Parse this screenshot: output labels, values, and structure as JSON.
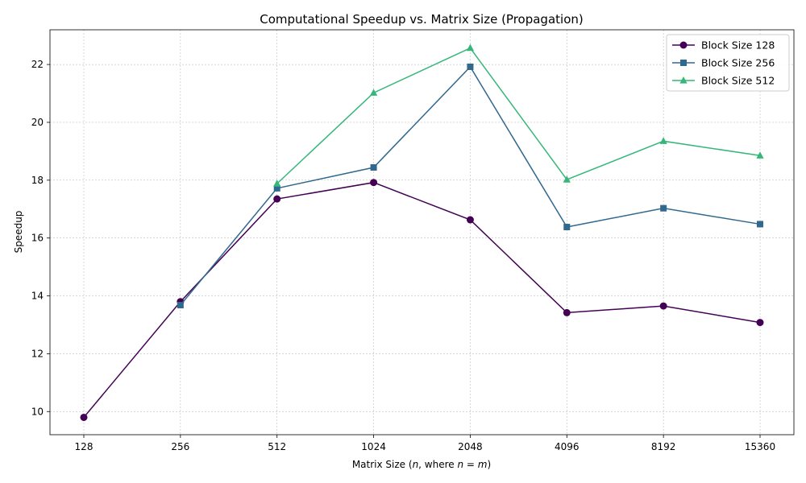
{
  "chart_data": {
    "type": "line",
    "title": "Computational Speedup vs. Matrix Size (Propagation)",
    "xlabel": "Matrix Size (n, where n = m)",
    "ylabel": "Speedup",
    "categories": [
      "128",
      "256",
      "512",
      "1024",
      "2048",
      "4096",
      "8192",
      "15360"
    ],
    "ylim": [
      9.2,
      23.2
    ],
    "yticks": [
      10,
      12,
      14,
      16,
      18,
      20,
      22
    ],
    "grid": true,
    "legend_position": "top-right",
    "series": [
      {
        "name": "Block Size 128",
        "color": "#440154",
        "marker": "circle",
        "values": [
          9.8,
          13.8,
          17.35,
          17.92,
          16.63,
          13.42,
          13.65,
          13.08
        ]
      },
      {
        "name": "Block Size 256",
        "color": "#31688e",
        "marker": "square",
        "values": [
          null,
          13.68,
          17.72,
          18.44,
          21.92,
          16.38,
          17.03,
          16.48
        ]
      },
      {
        "name": "Block Size 512",
        "color": "#35b779",
        "marker": "triangle",
        "values": [
          null,
          null,
          17.88,
          21.02,
          22.57,
          18.02,
          19.35,
          18.85
        ]
      }
    ]
  }
}
